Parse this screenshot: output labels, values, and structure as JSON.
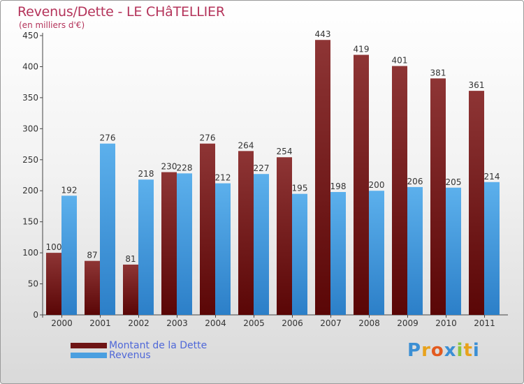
{
  "header": {
    "title": "Revenus/Dette - LE CHâTELLIER",
    "subtitle": "(en milliers d'€)"
  },
  "chart_data": {
    "type": "bar",
    "categories": [
      "2000",
      "2001",
      "2002",
      "2003",
      "2004",
      "2005",
      "2006",
      "2007",
      "2008",
      "2009",
      "2010",
      "2011"
    ],
    "series": [
      {
        "name": "Montant de la Dette",
        "color": "#7a1d1d",
        "values": [
          100,
          87,
          81,
          230,
          276,
          264,
          254,
          443,
          419,
          401,
          381,
          361
        ]
      },
      {
        "name": "Revenus",
        "color": "#4a9fe0",
        "values": [
          192,
          276,
          218,
          228,
          212,
          227,
          195,
          198,
          200,
          206,
          205,
          214
        ]
      }
    ],
    "ylim": [
      0,
      450
    ],
    "yticks": [
      0,
      50,
      100,
      150,
      200,
      250,
      300,
      350,
      400,
      450
    ],
    "grid": false,
    "legend_position": "bottom-left"
  },
  "legend": [
    {
      "label": "Montant de la Dette",
      "color": "#7a1d1d"
    },
    {
      "label": "Revenus",
      "color": "#4a9fe0"
    }
  ],
  "logo": {
    "text": "Proxiti",
    "letters": [
      "P",
      "r",
      "o",
      "x",
      "i",
      "t",
      "i"
    ],
    "colors": [
      "#3b8fd4",
      "#e8a21c",
      "#e35a1f",
      "#3b8fd4",
      "#8cc63f",
      "#e8a21c",
      "#3b8fd4"
    ]
  }
}
